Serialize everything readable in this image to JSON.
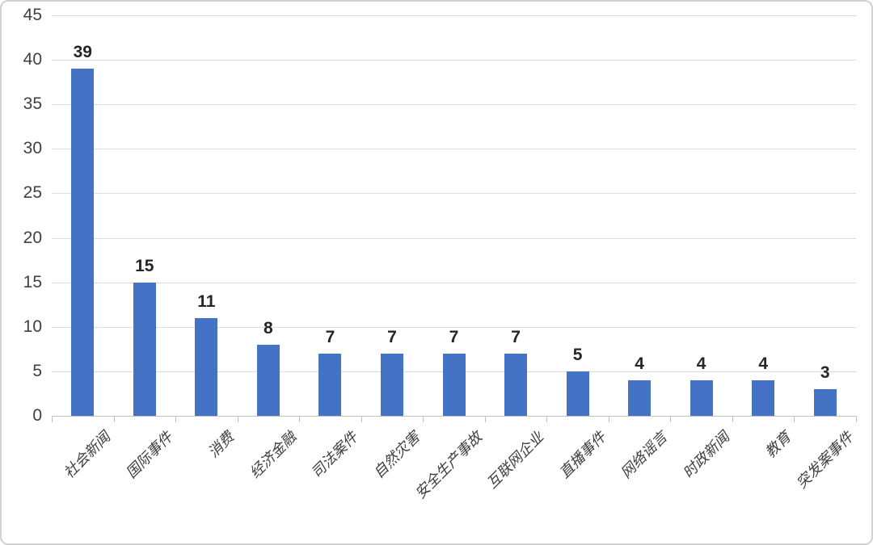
{
  "chart_data": {
    "type": "bar",
    "title": "",
    "xlabel": "",
    "ylabel": "",
    "categories": [
      "社会新闻",
      "国际事件",
      "消费",
      "经济金融",
      "司法案件",
      "自然灾害",
      "安全生产事故",
      "互联网企业",
      "直播事件",
      "网络谣言",
      "时政新闻",
      "教育",
      "突发案事件"
    ],
    "values": [
      39,
      15,
      11,
      8,
      7,
      7,
      7,
      7,
      5,
      4,
      4,
      4,
      3
    ],
    "yticks": [
      0,
      5,
      10,
      15,
      20,
      25,
      30,
      35,
      40,
      45
    ],
    "ylim": [
      0,
      45
    ],
    "grid": true,
    "legend_position": "none",
    "value_labels_shown": true,
    "bar_color": "#4472c4",
    "gridline_color": "#dcdcdc",
    "axis_line_color": "#bfbfbf",
    "tick_label_color": "#404040",
    "value_label_color": "#262626",
    "category_label_color": "#3f3f3f"
  }
}
